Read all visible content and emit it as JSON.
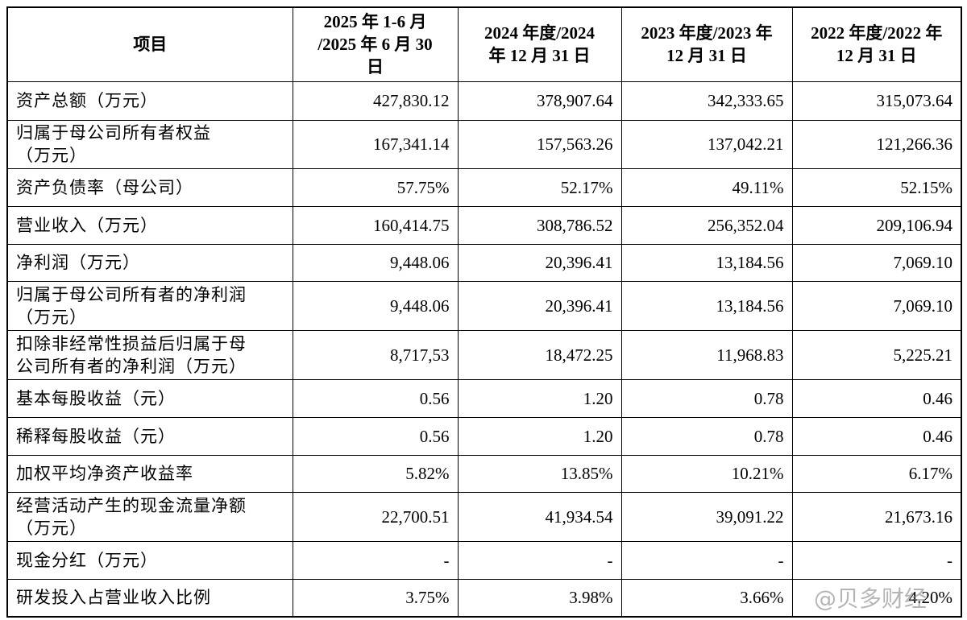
{
  "table": {
    "header": [
      [
        "项目"
      ],
      [
        "2025 年 1-6 月",
        "/2025 年 6 月 30",
        "日"
      ],
      [
        "2024 年度/2024",
        "年 12 月 31 日"
      ],
      [
        "2023 年度/2023 年",
        "12 月 31 日"
      ],
      [
        "2022 年度/2022 年",
        "12 月 31 日"
      ]
    ],
    "rows": [
      [
        [
          "资产总额（万元）"
        ],
        "427,830.12",
        "378,907.64",
        "342,333.65",
        "315,073.64"
      ],
      [
        [
          "归属于母公司所有者权益",
          "（万元）"
        ],
        "167,341.14",
        "157,563.26",
        "137,042.21",
        "121,266.36"
      ],
      [
        [
          "资产负债率（母公司）"
        ],
        "57.75%",
        "52.17%",
        "49.11%",
        "52.15%"
      ],
      [
        [
          "营业收入（万元）"
        ],
        "160,414.75",
        "308,786.52",
        "256,352.04",
        "209,106.94"
      ],
      [
        [
          "净利润（万元）"
        ],
        "9,448.06",
        "20,396.41",
        "13,184.56",
        "7,069.10"
      ],
      [
        [
          "归属于母公司所有者的净利润",
          "（万元）"
        ],
        "9,448.06",
        "20,396.41",
        "13,184.56",
        "7,069.10"
      ],
      [
        [
          "扣除非经常性损益后归属于母",
          "公司所有者的净利润（万元）"
        ],
        "8,717,53",
        "18,472.25",
        "11,968.83",
        "5,225.21"
      ],
      [
        [
          "基本每股收益（元）"
        ],
        "0.56",
        "1.20",
        "0.78",
        "0.46"
      ],
      [
        [
          "稀释每股收益（元）"
        ],
        "0.56",
        "1.20",
        "0.78",
        "0.46"
      ],
      [
        [
          "加权平均净资产收益率"
        ],
        "5.82%",
        "13.85%",
        "10.21%",
        "6.17%"
      ],
      [
        [
          "经营活动产生的现金流量净额",
          "（万元）"
        ],
        "22,700.51",
        "41,934.54",
        "39,091.22",
        "21,673.16"
      ],
      [
        [
          "现金分红（万元）"
        ],
        "-",
        "-",
        "-",
        "-"
      ],
      [
        [
          "研发投入占营业收入比例"
        ],
        "3.75%",
        "3.98%",
        "3.66%",
        "4.20%"
      ]
    ]
  },
  "watermark": "@贝多财经"
}
